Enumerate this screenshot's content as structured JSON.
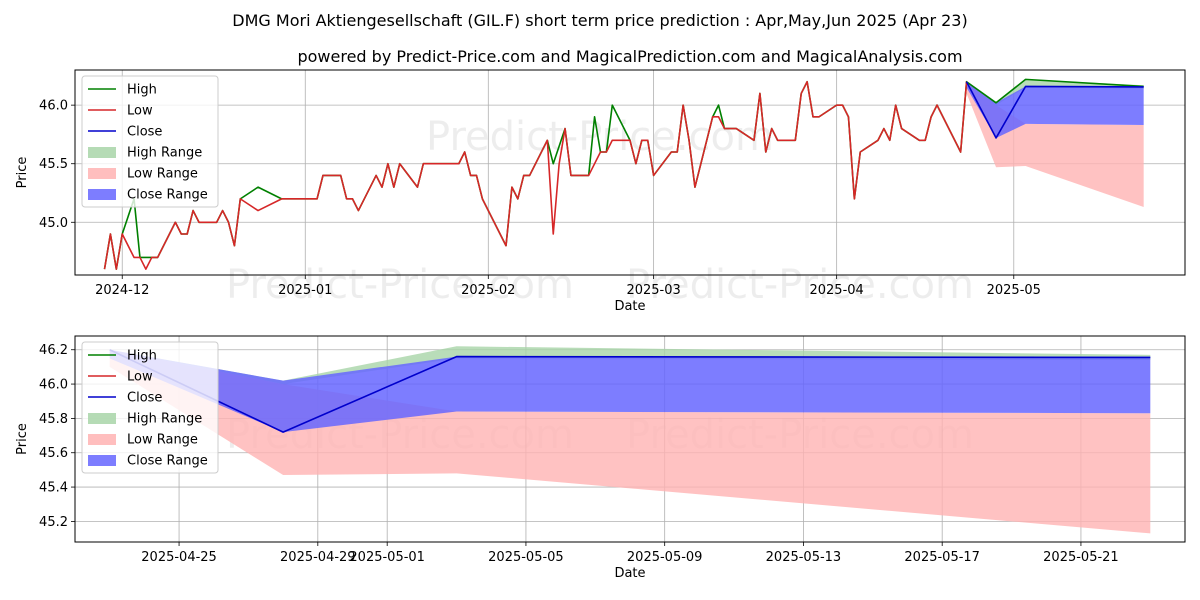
{
  "title": "DMG Mori Aktiengesellschaft (GIL.F) short term price prediction : Apr,May,Jun 2025 (Apr 23)",
  "subtitle": "powered by Predict-Price.com and MagicalPrediction.com and MagicalAnalysis.com",
  "watermark": "Predict-Price.com",
  "colors": {
    "high": "#008000",
    "low": "#d62728",
    "close": "#0000cc",
    "high_range": "#a8d5a8",
    "low_range": "#ffb3b3",
    "close_range": "#6666ff"
  },
  "legend": [
    "High",
    "Low",
    "Close",
    "High Range",
    "Low Range",
    "Close Range"
  ],
  "chart_data": [
    {
      "type": "line",
      "xlabel": "Date",
      "ylabel": "Price",
      "xlim": [
        "2024-11-23",
        "2025-05-30"
      ],
      "ylim": [
        44.55,
        46.3
      ],
      "yticks": [
        "45.0",
        "45.5",
        "46.0"
      ],
      "xticks": [
        "2024-12",
        "2025-01",
        "2025-02",
        "2025-03",
        "2025-04",
        "2025-05"
      ],
      "legend_position": "upper left",
      "grid": true,
      "series": [
        {
          "name": "High",
          "points": [
            [
              "2024-11-28",
              44.6
            ],
            [
              "2024-11-29",
              44.9
            ],
            [
              "2024-11-30",
              44.6
            ],
            [
              "2024-12-01",
              44.9
            ],
            [
              "2024-12-03",
              45.2
            ],
            [
              "2024-12-04",
              44.7
            ],
            [
              "2024-12-06",
              44.7
            ],
            [
              "2024-12-07",
              44.7
            ],
            [
              "2024-12-10",
              45.0
            ],
            [
              "2024-12-11",
              44.9
            ],
            [
              "2024-12-12",
              44.9
            ],
            [
              "2024-12-13",
              45.1
            ],
            [
              "2024-12-14",
              45.0
            ],
            [
              "2024-12-17",
              45.0
            ],
            [
              "2024-12-18",
              45.1
            ],
            [
              "2024-12-19",
              45.0
            ],
            [
              "2024-12-20",
              44.8
            ],
            [
              "2024-12-21",
              45.2
            ],
            [
              "2024-12-24",
              45.3
            ],
            [
              "2024-12-28",
              45.2
            ],
            [
              "2025-01-03",
              45.2
            ],
            [
              "2025-01-04",
              45.4
            ],
            [
              "2025-01-07",
              45.4
            ],
            [
              "2025-01-08",
              45.2
            ],
            [
              "2025-01-09",
              45.2
            ],
            [
              "2025-01-10",
              45.1
            ],
            [
              "2025-01-13",
              45.4
            ],
            [
              "2025-01-14",
              45.3
            ],
            [
              "2025-01-15",
              45.5
            ],
            [
              "2025-01-16",
              45.3
            ],
            [
              "2025-01-17",
              45.5
            ],
            [
              "2025-01-20",
              45.3
            ],
            [
              "2025-01-21",
              45.5
            ],
            [
              "2025-01-27",
              45.5
            ],
            [
              "2025-01-28",
              45.6
            ],
            [
              "2025-01-29",
              45.4
            ],
            [
              "2025-01-30",
              45.4
            ],
            [
              "2025-01-31",
              45.2
            ],
            [
              "2025-02-04",
              44.8
            ],
            [
              "2025-02-05",
              45.3
            ],
            [
              "2025-02-06",
              45.2
            ],
            [
              "2025-02-07",
              45.4
            ],
            [
              "2025-02-08",
              45.4
            ],
            [
              "2025-02-11",
              45.7
            ],
            [
              "2025-02-12",
              45.5
            ],
            [
              "2025-02-14",
              45.8
            ],
            [
              "2025-02-15",
              45.4
            ],
            [
              "2025-02-18",
              45.4
            ],
            [
              "2025-02-19",
              45.9
            ],
            [
              "2025-02-20",
              45.6
            ],
            [
              "2025-02-21",
              45.6
            ],
            [
              "2025-02-22",
              46.0
            ],
            [
              "2025-02-25",
              45.7
            ],
            [
              "2025-02-26",
              45.5
            ],
            [
              "2025-02-27",
              45.7
            ],
            [
              "2025-02-28",
              45.7
            ],
            [
              "2025-03-01",
              45.4
            ],
            [
              "2025-03-04",
              45.6
            ],
            [
              "2025-03-05",
              45.6
            ],
            [
              "2025-03-06",
              46.0
            ],
            [
              "2025-03-07",
              45.7
            ],
            [
              "2025-03-08",
              45.3
            ],
            [
              "2025-03-11",
              45.9
            ],
            [
              "2025-03-12",
              46.0
            ],
            [
              "2025-03-13",
              45.8
            ],
            [
              "2025-03-15",
              45.8
            ],
            [
              "2025-03-18",
              45.7
            ],
            [
              "2025-03-19",
              46.1
            ],
            [
              "2025-03-20",
              45.6
            ],
            [
              "2025-03-21",
              45.8
            ],
            [
              "2025-03-22",
              45.7
            ],
            [
              "2025-03-25",
              45.7
            ],
            [
              "2025-03-26",
              46.1
            ],
            [
              "2025-03-27",
              46.2
            ],
            [
              "2025-03-28",
              45.9
            ],
            [
              "2025-03-29",
              45.9
            ],
            [
              "2025-04-01",
              46.0
            ],
            [
              "2025-04-02",
              46.0
            ],
            [
              "2025-04-03",
              45.9
            ],
            [
              "2025-04-04",
              45.2
            ],
            [
              "2025-04-05",
              45.6
            ],
            [
              "2025-04-08",
              45.7
            ],
            [
              "2025-04-09",
              45.8
            ],
            [
              "2025-04-10",
              45.7
            ],
            [
              "2025-04-11",
              46.0
            ],
            [
              "2025-04-12",
              45.8
            ],
            [
              "2025-04-15",
              45.7
            ],
            [
              "2025-04-16",
              45.7
            ],
            [
              "2025-04-17",
              45.9
            ],
            [
              "2025-04-18",
              46.0
            ],
            [
              "2025-04-22",
              45.6
            ],
            [
              "2025-04-23",
              46.2
            ],
            [
              "2025-04-28",
              46.02
            ],
            [
              "2025-05-03",
              46.22
            ],
            [
              "2025-05-23",
              46.16
            ]
          ]
        },
        {
          "name": "Low",
          "points": [
            [
              "2024-11-28",
              44.6
            ],
            [
              "2024-11-29",
              44.9
            ],
            [
              "2024-11-30",
              44.6
            ],
            [
              "2024-12-01",
              44.9
            ],
            [
              "2024-12-03",
              44.7
            ],
            [
              "2024-12-04",
              44.7
            ],
            [
              "2024-12-05",
              44.6
            ],
            [
              "2024-12-06",
              44.7
            ],
            [
              "2024-12-07",
              44.7
            ],
            [
              "2024-12-10",
              45.0
            ],
            [
              "2024-12-11",
              44.9
            ],
            [
              "2024-12-12",
              44.9
            ],
            [
              "2024-12-13",
              45.1
            ],
            [
              "2024-12-14",
              45.0
            ],
            [
              "2024-12-17",
              45.0
            ],
            [
              "2024-12-18",
              45.1
            ],
            [
              "2024-12-19",
              45.0
            ],
            [
              "2024-12-20",
              44.8
            ],
            [
              "2024-12-21",
              45.2
            ],
            [
              "2024-12-24",
              45.1
            ],
            [
              "2024-12-28",
              45.2
            ],
            [
              "2025-01-03",
              45.2
            ],
            [
              "2025-01-04",
              45.4
            ],
            [
              "2025-01-07",
              45.4
            ],
            [
              "2025-01-08",
              45.2
            ],
            [
              "2025-01-09",
              45.2
            ],
            [
              "2025-01-10",
              45.1
            ],
            [
              "2025-01-13",
              45.4
            ],
            [
              "2025-01-14",
              45.3
            ],
            [
              "2025-01-15",
              45.5
            ],
            [
              "2025-01-16",
              45.3
            ],
            [
              "2025-01-17",
              45.5
            ],
            [
              "2025-01-20",
              45.3
            ],
            [
              "2025-01-21",
              45.5
            ],
            [
              "2025-01-27",
              45.5
            ],
            [
              "2025-01-28",
              45.6
            ],
            [
              "2025-01-29",
              45.4
            ],
            [
              "2025-01-30",
              45.4
            ],
            [
              "2025-01-31",
              45.2
            ],
            [
              "2025-02-04",
              44.8
            ],
            [
              "2025-02-05",
              45.3
            ],
            [
              "2025-02-06",
              45.2
            ],
            [
              "2025-02-07",
              45.4
            ],
            [
              "2025-02-08",
              45.4
            ],
            [
              "2025-02-11",
              45.7
            ],
            [
              "2025-02-12",
              44.9
            ],
            [
              "2025-02-13",
              45.5
            ],
            [
              "2025-02-14",
              45.8
            ],
            [
              "2025-02-15",
              45.4
            ],
            [
              "2025-02-18",
              45.4
            ],
            [
              "2025-02-20",
              45.6
            ],
            [
              "2025-02-21",
              45.6
            ],
            [
              "2025-02-22",
              45.7
            ],
            [
              "2025-02-25",
              45.7
            ],
            [
              "2025-02-26",
              45.5
            ],
            [
              "2025-02-27",
              45.7
            ],
            [
              "2025-02-28",
              45.7
            ],
            [
              "2025-03-01",
              45.4
            ],
            [
              "2025-03-04",
              45.6
            ],
            [
              "2025-03-05",
              45.6
            ],
            [
              "2025-03-06",
              46.0
            ],
            [
              "2025-03-07",
              45.7
            ],
            [
              "2025-03-08",
              45.3
            ],
            [
              "2025-03-11",
              45.9
            ],
            [
              "2025-03-12",
              45.9
            ],
            [
              "2025-03-13",
              45.8
            ],
            [
              "2025-03-15",
              45.8
            ],
            [
              "2025-03-18",
              45.7
            ],
            [
              "2025-03-19",
              46.1
            ],
            [
              "2025-03-20",
              45.6
            ],
            [
              "2025-03-21",
              45.8
            ],
            [
              "2025-03-22",
              45.7
            ],
            [
              "2025-03-25",
              45.7
            ],
            [
              "2025-03-26",
              46.1
            ],
            [
              "2025-03-27",
              46.2
            ],
            [
              "2025-03-28",
              45.9
            ],
            [
              "2025-03-29",
              45.9
            ],
            [
              "2025-04-01",
              46.0
            ],
            [
              "2025-04-02",
              46.0
            ],
            [
              "2025-04-03",
              45.9
            ],
            [
              "2025-04-04",
              45.2
            ],
            [
              "2025-04-05",
              45.6
            ],
            [
              "2025-04-08",
              45.7
            ],
            [
              "2025-04-09",
              45.8
            ],
            [
              "2025-04-10",
              45.7
            ],
            [
              "2025-04-11",
              46.0
            ],
            [
              "2025-04-12",
              45.8
            ],
            [
              "2025-04-15",
              45.7
            ],
            [
              "2025-04-16",
              45.7
            ],
            [
              "2025-04-17",
              45.9
            ],
            [
              "2025-04-18",
              46.0
            ],
            [
              "2025-04-22",
              45.6
            ],
            [
              "2025-04-23",
              46.2
            ]
          ]
        },
        {
          "name": "Close",
          "points": [
            [
              "2025-04-23",
              46.2
            ],
            [
              "2025-04-28",
              45.72
            ],
            [
              "2025-05-03",
              46.16
            ],
            [
              "2025-05-23",
              46.155
            ]
          ]
        }
      ],
      "ranges": [
        {
          "name": "High Range",
          "x": [
            "2025-04-23",
            "2025-04-28",
            "2025-05-03",
            "2025-05-23"
          ],
          "upper": [
            46.2,
            46.02,
            46.22,
            46.17
          ],
          "lower": [
            46.2,
            46.0,
            46.15,
            46.14
          ]
        },
        {
          "name": "Low Range",
          "x": [
            "2025-04-23",
            "2025-04-28",
            "2025-05-03",
            "2025-05-23"
          ],
          "upper": [
            46.2,
            46.0,
            45.84,
            45.83
          ],
          "lower": [
            46.1,
            45.47,
            45.48,
            45.13
          ]
        },
        {
          "name": "Close Range",
          "x": [
            "2025-04-23",
            "2025-04-28",
            "2025-05-03",
            "2025-05-23"
          ],
          "upper": [
            46.2,
            46.02,
            46.16,
            46.16
          ],
          "lower": [
            46.15,
            45.72,
            45.84,
            45.83
          ]
        }
      ]
    },
    {
      "type": "line",
      "xlabel": "Date",
      "ylabel": "Price",
      "xlim": [
        "2025-04-22T00:00",
        "2025-05-24T00:00"
      ],
      "ylim": [
        45.08,
        46.28
      ],
      "yticks": [
        "45.2",
        "45.4",
        "45.6",
        "45.8",
        "46.0",
        "46.2"
      ],
      "xticks": [
        "2025-04-25",
        "2025-04-29",
        "2025-05-01",
        "2025-05-05",
        "2025-05-09",
        "2025-05-13",
        "2025-05-17",
        "2025-05-21"
      ],
      "legend_position": "upper left",
      "grid": true,
      "series": [
        {
          "name": "High",
          "points": []
        },
        {
          "name": "Low",
          "points": []
        },
        {
          "name": "Close",
          "points": [
            [
              "2025-04-23",
              46.2
            ],
            [
              "2025-04-28",
              45.72
            ],
            [
              "2025-05-03",
              46.16
            ],
            [
              "2025-05-23",
              46.155
            ]
          ]
        }
      ],
      "ranges": [
        {
          "name": "High Range",
          "x": [
            "2025-04-23",
            "2025-04-28",
            "2025-05-03",
            "2025-05-23"
          ],
          "upper": [
            46.2,
            46.02,
            46.22,
            46.17
          ],
          "lower": [
            46.2,
            46.0,
            46.15,
            46.14
          ]
        },
        {
          "name": "Low Range",
          "x": [
            "2025-04-23",
            "2025-04-28",
            "2025-05-03",
            "2025-05-23"
          ],
          "upper": [
            46.2,
            46.0,
            45.84,
            45.83
          ],
          "lower": [
            46.1,
            45.47,
            45.48,
            45.13
          ]
        },
        {
          "name": "Close Range",
          "x": [
            "2025-04-23",
            "2025-04-28",
            "2025-05-03",
            "2025-05-23"
          ],
          "upper": [
            46.2,
            46.02,
            46.16,
            46.16
          ],
          "lower": [
            46.15,
            45.72,
            45.84,
            45.83
          ]
        }
      ]
    }
  ]
}
